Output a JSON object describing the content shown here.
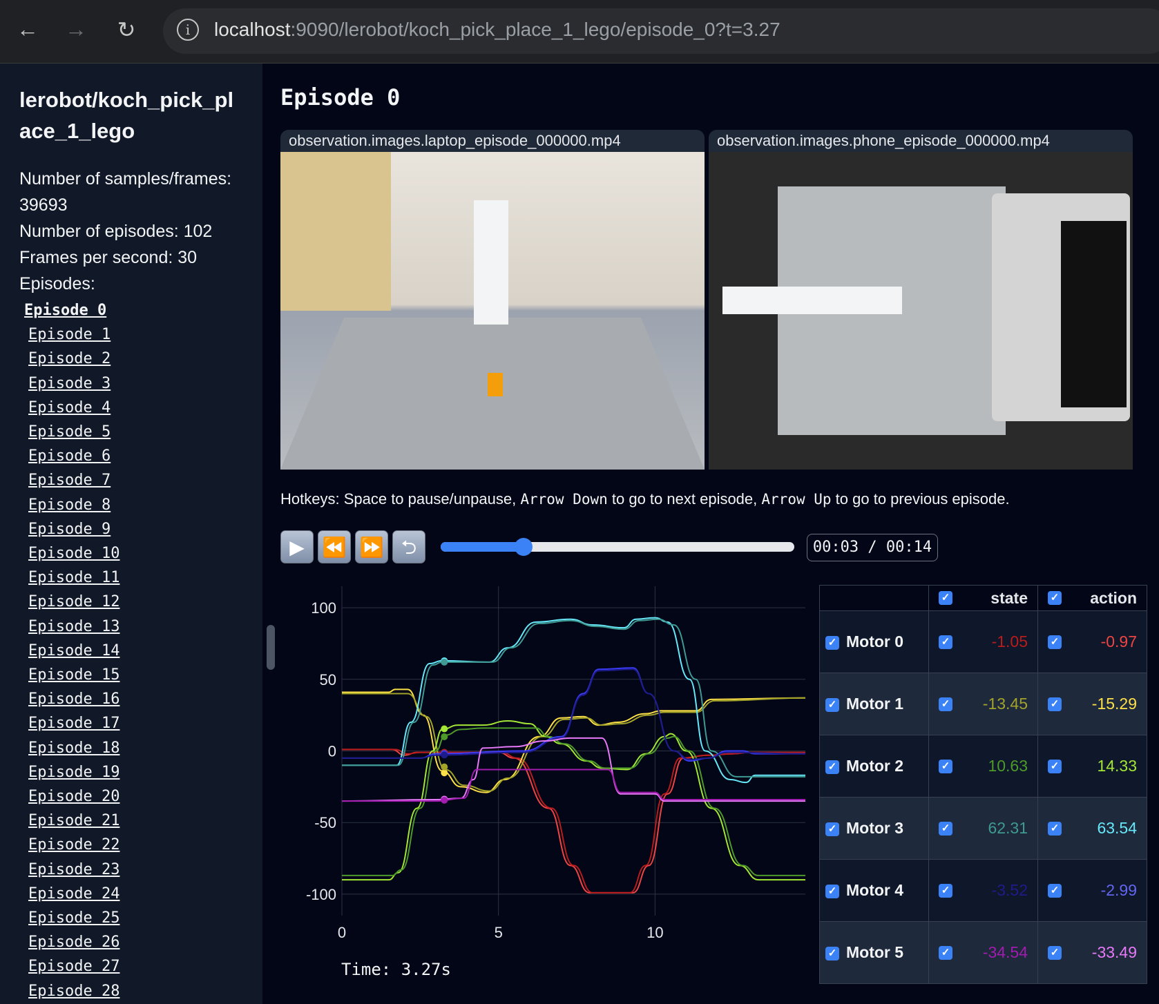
{
  "browser": {
    "url_host": "localhost",
    "url_rest": ":9090/lerobot/koch_pick_place_1_lego/episode_0?t=3.27"
  },
  "sidebar": {
    "title": "lerobot/koch_pick_place_1_lego",
    "samples_label": "Number of samples/frames: 39693",
    "episodes_count_label": "Number of episodes: 102",
    "fps_label": "Frames per second: 30",
    "episodes_heading": "Episodes:",
    "episodes": [
      "Episode 0",
      "Episode 1",
      "Episode 2",
      "Episode 3",
      "Episode 4",
      "Episode 5",
      "Episode 6",
      "Episode 7",
      "Episode 8",
      "Episode 9",
      "Episode 10",
      "Episode 11",
      "Episode 12",
      "Episode 13",
      "Episode 14",
      "Episode 15",
      "Episode 16",
      "Episode 17",
      "Episode 18",
      "Episode 19",
      "Episode 20",
      "Episode 21",
      "Episode 22",
      "Episode 23",
      "Episode 24",
      "Episode 25",
      "Episode 26",
      "Episode 27",
      "Episode 28"
    ]
  },
  "main": {
    "title": "Episode 0",
    "videos": [
      "observation.images.laptop_episode_000000.mp4",
      "observation.images.phone_episode_000000.mp4"
    ],
    "hotkeys": {
      "a": "Hotkeys: Space to pause/unpause, ",
      "k1": "Arrow Down",
      "b": " to go to next episode, ",
      "k2": "Arrow Up",
      "c": " to go to previous episode."
    },
    "player": {
      "time_display": "00:03 / 00:14",
      "progress": 0.234,
      "icons": [
        "play-icon",
        "rewind-icon",
        "fast-forward-icon",
        "loop-icon"
      ]
    },
    "time_label": "Time: 3.27s"
  },
  "table": {
    "headers": [
      "state",
      "action"
    ],
    "rows": [
      {
        "name": "Motor 0",
        "state": "-1.05",
        "action": "-0.97",
        "state_color": "#b91c1c",
        "action_color": "#ef4444"
      },
      {
        "name": "Motor 1",
        "state": "-13.45",
        "action": "-15.29",
        "state_color": "#a3a32a",
        "action_color": "#fde047"
      },
      {
        "name": "Motor 2",
        "state": "10.63",
        "action": "14.33",
        "state_color": "#4d9a2a",
        "action_color": "#a3e635"
      },
      {
        "name": "Motor 3",
        "state": "62.31",
        "action": "63.54",
        "state_color": "#3f9a94",
        "action_color": "#67e8f9"
      },
      {
        "name": "Motor 4",
        "state": "-3.52",
        "action": "-2.99",
        "state_color": "#1e1b8b",
        "action_color": "#6366f1"
      },
      {
        "name": "Motor 5",
        "state": "-34.54",
        "action": "-33.49",
        "state_color": "#a21caf",
        "action_color": "#e879f9"
      }
    ]
  },
  "chart_data": {
    "type": "line",
    "xlabel": "",
    "ylabel": "",
    "xlim": [
      0,
      14.8
    ],
    "ylim": [
      -115,
      115
    ],
    "xticks": [
      0,
      5,
      10
    ],
    "yticks": [
      -100,
      -50,
      0,
      50,
      100
    ],
    "grid": true,
    "current_time": 3.27,
    "series": [
      {
        "motor": "Motor 0",
        "kind": "action",
        "color": "#ef4444",
        "points": [
          [
            0,
            1
          ],
          [
            1.6,
            1
          ],
          [
            2.0,
            -3
          ],
          [
            2.4,
            -1
          ],
          [
            5.0,
            -1
          ],
          [
            5.5,
            -5
          ],
          [
            6.6,
            -40
          ],
          [
            7.3,
            -80
          ],
          [
            7.9,
            -99
          ],
          [
            9.3,
            -99
          ],
          [
            9.8,
            -80
          ],
          [
            10.4,
            -30
          ],
          [
            10.9,
            -5
          ],
          [
            11.7,
            -3
          ],
          [
            12.5,
            -2
          ],
          [
            13,
            -1
          ],
          [
            14.8,
            -1
          ]
        ]
      },
      {
        "motor": "Motor 0",
        "kind": "state",
        "color": "#b91c1c",
        "points": [
          [
            0,
            1
          ],
          [
            1.7,
            1
          ],
          [
            2.1,
            -2
          ],
          [
            2.5,
            -1
          ],
          [
            5.1,
            -1
          ],
          [
            5.6,
            -5
          ],
          [
            6.7,
            -40
          ],
          [
            7.4,
            -80
          ],
          [
            8.0,
            -99
          ],
          [
            9.2,
            -99
          ],
          [
            9.7,
            -80
          ],
          [
            10.3,
            -30
          ],
          [
            10.8,
            -5
          ],
          [
            11.7,
            -3
          ],
          [
            12.5,
            -2
          ],
          [
            13,
            -1
          ],
          [
            14.8,
            -1
          ]
        ]
      },
      {
        "motor": "Motor 1",
        "kind": "action",
        "color": "#fde047",
        "points": [
          [
            0,
            41
          ],
          [
            1.5,
            41
          ],
          [
            1.7,
            43
          ],
          [
            2.1,
            43
          ],
          [
            2.6,
            25
          ],
          [
            3.2,
            -14
          ],
          [
            3.8,
            -25
          ],
          [
            4.6,
            -29
          ],
          [
            5.2,
            -20
          ],
          [
            6.3,
            10
          ],
          [
            7.0,
            23
          ],
          [
            7.7,
            24
          ],
          [
            8.2,
            18
          ],
          [
            8.8,
            20
          ],
          [
            9.7,
            26
          ],
          [
            10.2,
            28
          ],
          [
            11.3,
            28
          ],
          [
            11.8,
            36
          ],
          [
            14.8,
            37
          ]
        ]
      },
      {
        "motor": "Motor 1",
        "kind": "state",
        "color": "#a3a32a",
        "points": [
          [
            0,
            40
          ],
          [
            2.1,
            40
          ],
          [
            2.7,
            24
          ],
          [
            3.3,
            -13
          ],
          [
            3.9,
            -24
          ],
          [
            4.7,
            -28
          ],
          [
            5.3,
            -19
          ],
          [
            6.4,
            10
          ],
          [
            7.1,
            22
          ],
          [
            7.8,
            23
          ],
          [
            8.3,
            18
          ],
          [
            8.9,
            19
          ],
          [
            9.8,
            25
          ],
          [
            10.3,
            27
          ],
          [
            11.3,
            27
          ],
          [
            11.9,
            35
          ],
          [
            14.8,
            37
          ]
        ]
      },
      {
        "motor": "Motor 2",
        "kind": "action",
        "color": "#a3e635",
        "points": [
          [
            0,
            -90
          ],
          [
            1.5,
            -90
          ],
          [
            1.8,
            -85
          ],
          [
            2.4,
            -40
          ],
          [
            2.9,
            0
          ],
          [
            3.2,
            15
          ],
          [
            3.7,
            18
          ],
          [
            4.5,
            18
          ],
          [
            5.3,
            21
          ],
          [
            6.0,
            19
          ],
          [
            6.5,
            10
          ],
          [
            7.0,
            5
          ],
          [
            7.8,
            -7
          ],
          [
            8.3,
            -12
          ],
          [
            9.1,
            -13
          ],
          [
            9.7,
            -2
          ],
          [
            10.3,
            10
          ],
          [
            10.5,
            12
          ],
          [
            11,
            0
          ],
          [
            11.8,
            -40
          ],
          [
            12.7,
            -80
          ],
          [
            13.3,
            -90
          ],
          [
            14.8,
            -90
          ]
        ]
      },
      {
        "motor": "Motor 2",
        "kind": "state",
        "color": "#4d9a2a",
        "points": [
          [
            0,
            -87
          ],
          [
            1.6,
            -87
          ],
          [
            1.9,
            -83
          ],
          [
            2.5,
            -40
          ],
          [
            3.0,
            0
          ],
          [
            3.3,
            11
          ],
          [
            3.8,
            15
          ],
          [
            4.5,
            16
          ],
          [
            6.2,
            16
          ],
          [
            6.6,
            10
          ],
          [
            7.1,
            5
          ],
          [
            7.9,
            -7
          ],
          [
            8.4,
            -12
          ],
          [
            9.2,
            -12
          ],
          [
            9.8,
            -2
          ],
          [
            10.4,
            9
          ],
          [
            10.6,
            10
          ],
          [
            11.1,
            0
          ],
          [
            11.9,
            -40
          ],
          [
            12.8,
            -80
          ],
          [
            13.3,
            -87
          ],
          [
            14.8,
            -87
          ]
        ]
      },
      {
        "motor": "Motor 3",
        "kind": "action",
        "color": "#67e8f9",
        "points": [
          [
            0,
            -10
          ],
          [
            1.75,
            -10
          ],
          [
            2.2,
            20
          ],
          [
            2.8,
            61
          ],
          [
            3.2,
            63
          ],
          [
            4.7,
            62
          ],
          [
            5.3,
            72
          ],
          [
            6.2,
            90
          ],
          [
            7.3,
            92
          ],
          [
            8,
            88
          ],
          [
            9,
            86
          ],
          [
            9.4,
            92
          ],
          [
            10,
            93
          ],
          [
            10.4,
            90
          ],
          [
            11.1,
            50
          ],
          [
            11.6,
            0
          ],
          [
            12.4,
            -20
          ],
          [
            12.9,
            -22
          ],
          [
            13.2,
            -17
          ],
          [
            14.8,
            -17
          ]
        ]
      },
      {
        "motor": "Motor 3",
        "kind": "state",
        "color": "#3f9a94",
        "points": [
          [
            0,
            -10
          ],
          [
            1.8,
            -10
          ],
          [
            2.3,
            20
          ],
          [
            2.9,
            60
          ],
          [
            3.2,
            62
          ],
          [
            4.8,
            62
          ],
          [
            5.4,
            72
          ],
          [
            6.3,
            89
          ],
          [
            7.3,
            91
          ],
          [
            8.1,
            87
          ],
          [
            9,
            85
          ],
          [
            9.5,
            91
          ],
          [
            10.1,
            92
          ],
          [
            10.6,
            88
          ],
          [
            11.3,
            50
          ],
          [
            11.8,
            0
          ],
          [
            12.6,
            -18
          ],
          [
            14.8,
            -18
          ]
        ]
      },
      {
        "motor": "Motor 4",
        "kind": "action",
        "color": "#3b3bf6",
        "points": [
          [
            0,
            -5
          ],
          [
            2.5,
            -5
          ],
          [
            3,
            -2
          ],
          [
            5.8,
            0
          ],
          [
            7,
            10
          ],
          [
            7.7,
            40
          ],
          [
            8.2,
            57
          ],
          [
            9.3,
            58
          ],
          [
            9.8,
            40
          ],
          [
            10.6,
            0
          ],
          [
            11.1,
            -7
          ],
          [
            11.7,
            -5
          ],
          [
            12.3,
            0
          ],
          [
            12.8,
            0
          ],
          [
            13.2,
            -2
          ],
          [
            14.8,
            -2
          ]
        ]
      },
      {
        "motor": "Motor 4",
        "kind": "state",
        "color": "#1e1b8b",
        "points": [
          [
            0,
            -5
          ],
          [
            2.5,
            -5
          ],
          [
            3,
            -3
          ],
          [
            5.8,
            -1
          ],
          [
            7,
            9
          ],
          [
            7.7,
            39
          ],
          [
            8.2,
            56
          ],
          [
            9.3,
            57
          ],
          [
            9.8,
            40
          ],
          [
            10.6,
            0
          ],
          [
            11.1,
            -6
          ],
          [
            11.7,
            -5
          ],
          [
            12.3,
            -1
          ],
          [
            14.8,
            -2
          ]
        ]
      },
      {
        "motor": "Motor 5",
        "kind": "action",
        "color": "#e879f9",
        "points": [
          [
            0,
            -35
          ],
          [
            3.0,
            -34
          ],
          [
            3.8,
            -33
          ],
          [
            4.2,
            -20
          ],
          [
            4.5,
            2
          ],
          [
            5.5,
            3
          ],
          [
            6.5,
            7
          ],
          [
            7.3,
            9
          ],
          [
            8.3,
            9
          ],
          [
            8.9,
            -30
          ],
          [
            10.0,
            -30
          ],
          [
            10.3,
            -35
          ],
          [
            14.8,
            -35
          ]
        ]
      },
      {
        "motor": "Motor 5",
        "kind": "state",
        "color": "#a21caf",
        "points": [
          [
            0,
            -35
          ],
          [
            3.0,
            -35
          ],
          [
            3.9,
            -33
          ],
          [
            4.3,
            -13
          ],
          [
            8.5,
            -13
          ],
          [
            8.9,
            -29
          ],
          [
            10.0,
            -29
          ],
          [
            10.3,
            -34
          ],
          [
            14.8,
            -34
          ]
        ]
      }
    ]
  }
}
